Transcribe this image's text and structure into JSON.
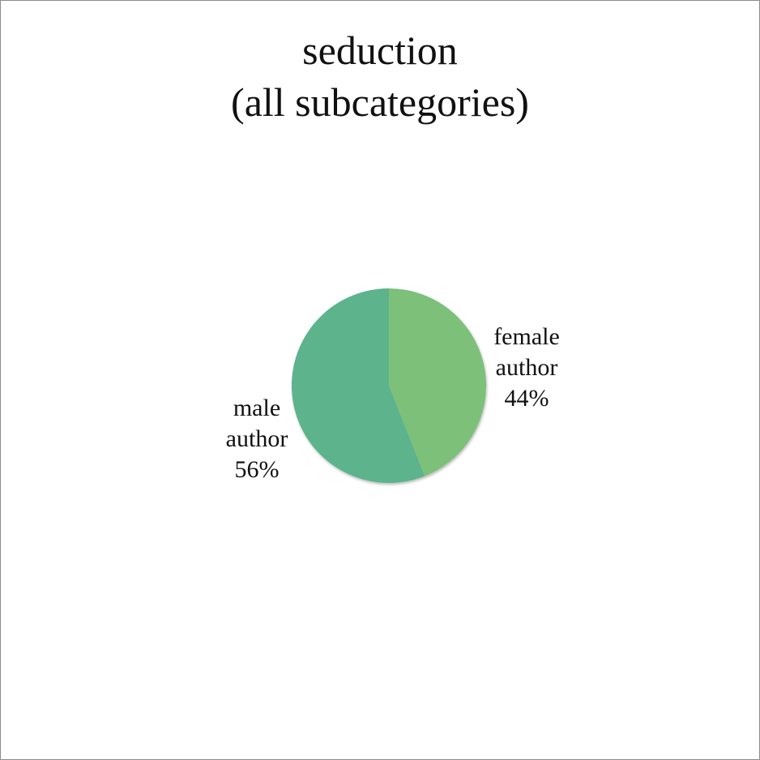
{
  "chart_data": {
    "type": "pie",
    "title_lines": [
      "seduction",
      "(all subcategories)"
    ],
    "slices": [
      {
        "label_lines": [
          "female",
          "author"
        ],
        "value": 44,
        "value_label": "44%",
        "color": "#7cc07a"
      },
      {
        "label_lines": [
          "male",
          "author"
        ],
        "value": 56,
        "value_label": "56%",
        "color": "#5cb38c"
      }
    ],
    "legend": "none"
  }
}
